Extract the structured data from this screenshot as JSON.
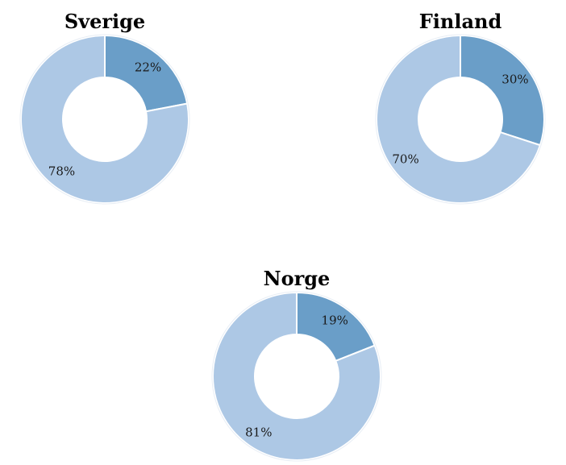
{
  "chart_data": [
    {
      "type": "pie",
      "title": "Sverige",
      "values": [
        22,
        78
      ],
      "labels": [
        "22%",
        "78%"
      ],
      "colors": [
        "#6a9ec8",
        "#adc8e5"
      ],
      "donut": true
    },
    {
      "type": "pie",
      "title": "Finland",
      "values": [
        30,
        70
      ],
      "labels": [
        "30%",
        "70%"
      ],
      "colors": [
        "#6a9ec8",
        "#adc8e5"
      ],
      "donut": true
    },
    {
      "type": "pie",
      "title": "Norge",
      "values": [
        19,
        81
      ],
      "labels": [
        "19%",
        "81%"
      ],
      "colors": [
        "#6a9ec8",
        "#adc8e5"
      ],
      "donut": true
    }
  ]
}
